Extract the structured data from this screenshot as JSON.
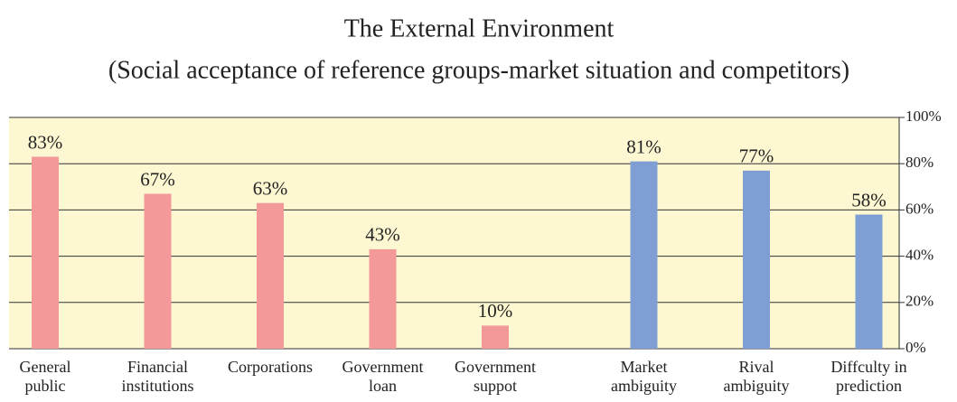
{
  "chart_data": {
    "type": "bar",
    "title": "The External Environment",
    "subtitle": "(Social acceptance of reference groups-market situation and competitors)",
    "categories": [
      [
        "General",
        "public"
      ],
      [
        "Financial",
        "institutions"
      ],
      [
        "Corporations"
      ],
      [
        "Government",
        "loan"
      ],
      [
        "Government",
        "suppot"
      ],
      [
        "Market",
        "ambiguity"
      ],
      [
        "Rival",
        "ambiguity"
      ],
      [
        "Diffculty in",
        "prediction"
      ]
    ],
    "values": [
      83,
      67,
      63,
      43,
      10,
      81,
      77,
      58
    ],
    "value_labels": [
      "83%",
      "67%",
      "63%",
      "43%",
      "10%",
      "81%",
      "77%",
      "58%"
    ],
    "colors": [
      "#f4999a",
      "#f4999a",
      "#f4999a",
      "#f4999a",
      "#f4999a",
      "#7f9fd4",
      "#7f9fd4",
      "#7f9fd4"
    ],
    "ylim": [
      0,
      100
    ],
    "yticks": [
      {
        "value": 0,
        "label": "0%"
      },
      {
        "value": 20,
        "label": "20%"
      },
      {
        "value": 40,
        "label": "40%"
      },
      {
        "value": 60,
        "label": "60%"
      },
      {
        "value": 80,
        "label": "80%"
      },
      {
        "value": 100,
        "label": "100%"
      }
    ],
    "grid": true
  }
}
